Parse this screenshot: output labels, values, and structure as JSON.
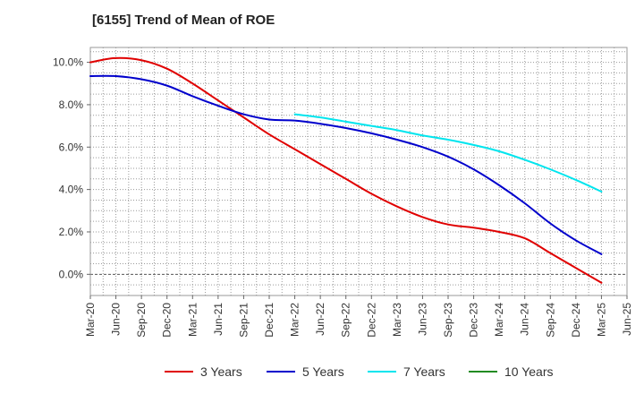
{
  "chart_data": {
    "type": "line",
    "title": "[6155]  Trend of Mean of ROE",
    "xlabel": "",
    "ylabel": "",
    "x_ticks": [
      "Mar-20",
      "Jun-20",
      "Sep-20",
      "Dec-20",
      "Mar-21",
      "Jun-21",
      "Sep-21",
      "Dec-21",
      "Mar-22",
      "Jun-22",
      "Sep-22",
      "Dec-22",
      "Mar-23",
      "Jun-23",
      "Sep-23",
      "Dec-23",
      "Mar-24",
      "Jun-24",
      "Sep-24",
      "Dec-24",
      "Mar-25",
      "Jun-25"
    ],
    "y_ticks": [
      0,
      2,
      4,
      6,
      8,
      10
    ],
    "y_tick_labels": [
      "0.0%",
      "2.0%",
      "4.0%",
      "6.0%",
      "8.0%",
      "10.0%"
    ],
    "ylim": [
      -1.0,
      10.7
    ],
    "grid": true,
    "legend_position": "bottom",
    "series": [
      {
        "name": "3 Years",
        "color": "#e00000",
        "start_index": 0,
        "values": [
          10.0,
          10.2,
          10.1,
          9.7,
          9.0,
          8.2,
          7.4,
          6.6,
          5.9,
          5.2,
          4.5,
          3.8,
          3.2,
          2.7,
          2.35,
          2.2,
          2.0,
          1.7,
          1.0,
          0.3,
          -0.4
        ]
      },
      {
        "name": "5 Years",
        "color": "#0000cc",
        "start_index": 0,
        "values": [
          9.35,
          9.35,
          9.2,
          8.9,
          8.4,
          7.95,
          7.55,
          7.3,
          7.25,
          7.1,
          6.9,
          6.65,
          6.35,
          6.0,
          5.55,
          4.95,
          4.2,
          3.35,
          2.4,
          1.6,
          0.95
        ]
      },
      {
        "name": "7 Years",
        "color": "#00e5ee",
        "start_index": 8,
        "values": [
          7.55,
          7.4,
          7.2,
          7.0,
          6.8,
          6.55,
          6.35,
          6.1,
          5.8,
          5.4,
          4.95,
          4.45,
          3.9
        ]
      },
      {
        "name": "10 Years",
        "color": "#228b22",
        "start_index": 0,
        "values": []
      }
    ]
  }
}
